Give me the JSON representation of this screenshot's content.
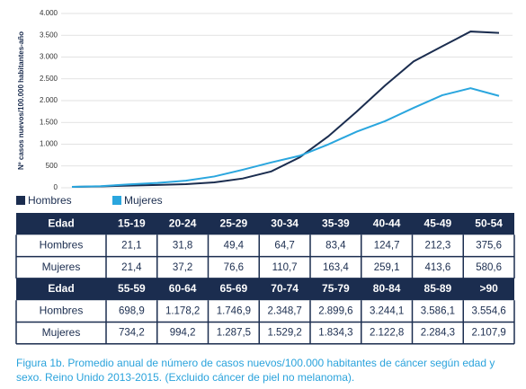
{
  "chart_data": {
    "type": "line",
    "ylabel": "Nº casos nuevos/100.000 habitantes-año",
    "categories": [
      "15-19",
      "20-24",
      "25-29",
      "30-34",
      "35-39",
      "40-44",
      "45-49",
      "50-54",
      "55-59",
      "60-64",
      "65-69",
      "70-74",
      "75-79",
      "80-84",
      "85-89",
      ">90"
    ],
    "series": [
      {
        "name": "Hombres",
        "color": "#1b2d4f",
        "values": [
          21.1,
          31.8,
          49.4,
          64.7,
          83.4,
          124.7,
          212.3,
          375.6,
          698.9,
          1178.2,
          1746.9,
          2348.7,
          2899.6,
          3244.1,
          3586.1,
          3554.6
        ],
        "value_labels": [
          "21,1",
          "31,8",
          "49,4",
          "64,7",
          "83,4",
          "124,7",
          "212,3",
          "375,6",
          "698,9",
          "1.178,2",
          "1.746,9",
          "2.348,7",
          "2.899,6",
          "3.244,1",
          "3.586,1",
          "3.554,6"
        ]
      },
      {
        "name": "Mujeres",
        "color": "#2aa6de",
        "values": [
          21.4,
          37.2,
          76.6,
          110.7,
          163.4,
          259.1,
          413.6,
          580.6,
          734.2,
          994.2,
          1287.5,
          1529.2,
          1834.3,
          2122.8,
          2284.3,
          2107.9
        ],
        "value_labels": [
          "21,4",
          "37,2",
          "76,6",
          "110,7",
          "163,4",
          "259,1",
          "413,6",
          "580,6",
          "734,2",
          "994,2",
          "1.287,5",
          "1.529,2",
          "1.834,3",
          "2.122,8",
          "2.284,3",
          "2.107,9"
        ]
      }
    ],
    "ylim": [
      0,
      4000
    ],
    "yticks": [
      0,
      500,
      {
        "value": 1000,
        "label": "1.000"
      },
      {
        "value": 1500,
        "label": "1.500"
      },
      {
        "value": 2000,
        "label": "2.000"
      },
      {
        "value": 2500,
        "label": "2.500"
      },
      {
        "value": 3000,
        "label": "3.000"
      },
      {
        "value": 3500,
        "label": "3.500"
      },
      {
        "value": 4000,
        "label": "4.000"
      }
    ],
    "grid": true,
    "legend": "bottom",
    "table_header": "Edad"
  },
  "caption": "Figura 1b. Promedio anual de número de casos nuevos/100.000 habitantes de cáncer según edad y sexo. Reino Unido 2013-2015. (Excluido cáncer de piel no melanoma)."
}
